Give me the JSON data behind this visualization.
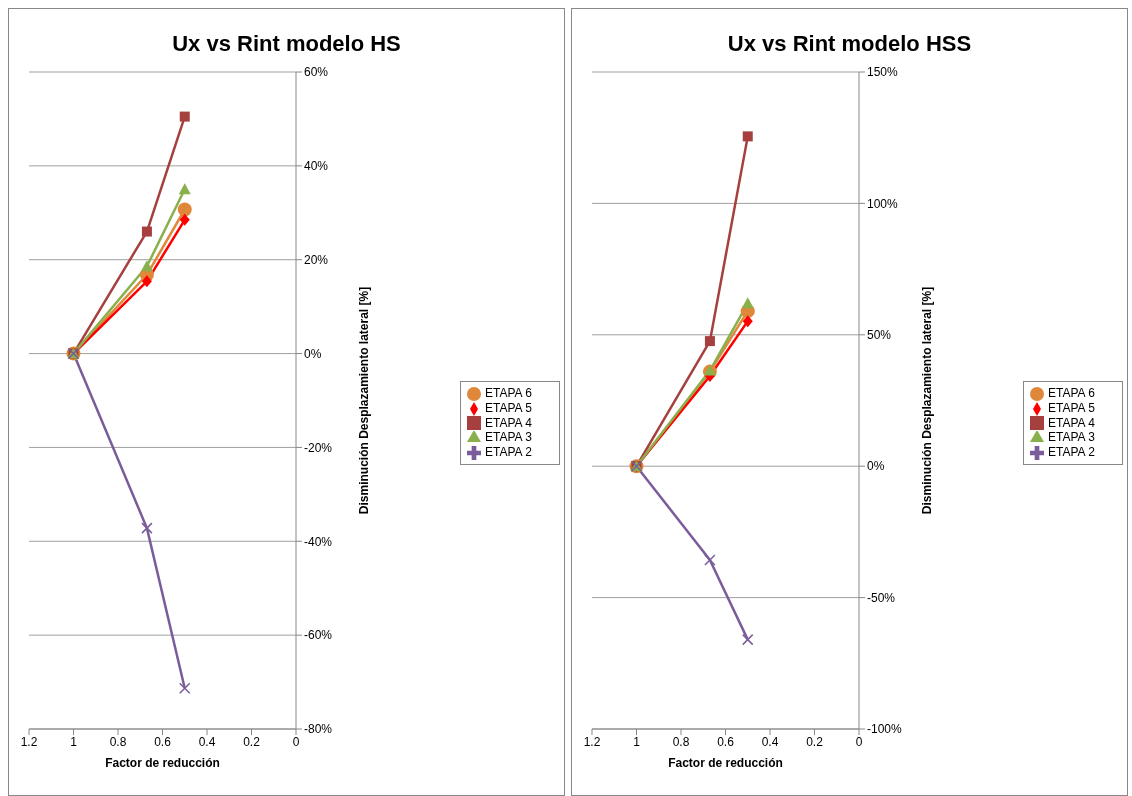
{
  "chart_data": [
    {
      "type": "line",
      "title": "Ux vs Rint modelo HS",
      "xlabel": "Factor de reducción",
      "ylabel": "Disminución Desplazamiento lateral [%]",
      "x": [
        1,
        0.67,
        0.5
      ],
      "xlim": [
        1.2,
        0
      ],
      "xticks": [
        1.2,
        1,
        0.8,
        0.6,
        0.4,
        0.2,
        0
      ],
      "ylim": [
        -80,
        60
      ],
      "yticks": [
        {
          "value": -80,
          "label": "-80%"
        },
        {
          "value": -60,
          "label": "-60%"
        },
        {
          "value": -40,
          "label": "-40%"
        },
        {
          "value": -20,
          "label": "-20%"
        },
        {
          "value": 0,
          "label": "0%"
        },
        {
          "value": 20,
          "label": "20%"
        },
        {
          "value": 40,
          "label": "40%"
        },
        {
          "value": 60,
          "label": "60%"
        }
      ],
      "grid": "y",
      "legend": "right",
      "line_style": "solid",
      "series": [
        {
          "name": "ETAPA 6",
          "color": "#e0883a",
          "marker": "circle",
          "values": [
            0,
            16.8,
            30.7
          ]
        },
        {
          "name": "ETAPA 5",
          "color": "#ff0000",
          "marker": "diamond",
          "values": [
            0,
            15.4,
            28.5
          ]
        },
        {
          "name": "ETAPA 4",
          "color": "#a5403e",
          "marker": "square",
          "values": [
            0,
            26,
            50.5
          ]
        },
        {
          "name": "ETAPA 3",
          "color": "#8ab04c",
          "marker": "triangle",
          "values": [
            0,
            18.6,
            35
          ]
        },
        {
          "name": "ETAPA 2",
          "color": "#7a5c9a",
          "marker": "cross",
          "values": [
            0,
            -37.2,
            -71.3
          ]
        }
      ]
    },
    {
      "type": "line",
      "title": "Ux vs Rint modelo HSS",
      "xlabel": "Factor de reducción",
      "ylabel": "Disminución Desplazamiento lateral [%]",
      "x": [
        1,
        0.67,
        0.5
      ],
      "xlim": [
        1.2,
        0
      ],
      "xticks": [
        1.2,
        1,
        0.8,
        0.6,
        0.4,
        0.2,
        0
      ],
      "ylim": [
        -100,
        150
      ],
      "yticks": [
        {
          "value": -100,
          "label": "-100%"
        },
        {
          "value": -50,
          "label": "-50%"
        },
        {
          "value": 0,
          "label": "0%"
        },
        {
          "value": 50,
          "label": "50%"
        },
        {
          "value": 100,
          "label": "100%"
        },
        {
          "value": 150,
          "label": "150%"
        }
      ],
      "grid": "y",
      "legend": "right",
      "line_style": "solid",
      "series": [
        {
          "name": "ETAPA 6",
          "color": "#e0883a",
          "marker": "circle",
          "values": [
            0,
            36,
            59
          ]
        },
        {
          "name": "ETAPA 5",
          "color": "#ff0000",
          "marker": "diamond",
          "values": [
            0,
            34.3,
            55.2
          ]
        },
        {
          "name": "ETAPA 4",
          "color": "#a5403e",
          "marker": "square",
          "values": [
            0,
            47.6,
            125.5
          ]
        },
        {
          "name": "ETAPA 3",
          "color": "#8ab04c",
          "marker": "triangle",
          "values": [
            0,
            36.4,
            62
          ]
        },
        {
          "name": "ETAPA 2",
          "color": "#7a5c9a",
          "marker": "cross",
          "values": [
            0,
            -35.7,
            -66
          ]
        }
      ]
    }
  ]
}
